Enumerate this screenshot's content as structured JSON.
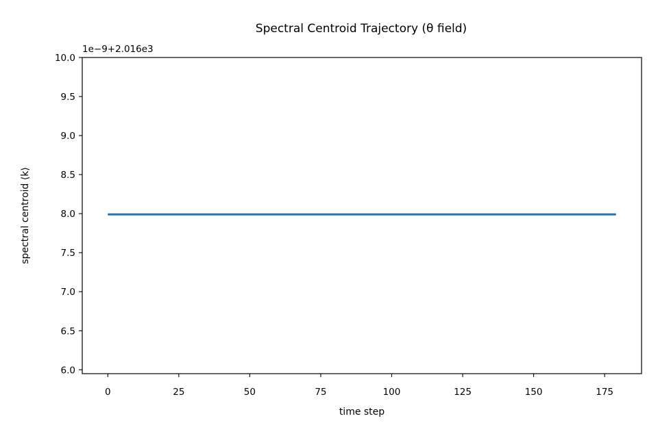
{
  "chart_data": {
    "type": "line",
    "title": "Spectral Centroid Trajectory (θ field)",
    "xlabel": "time step",
    "ylabel": "spectral centroid ⟨k⟩",
    "y_offset_label": "1e−9+2.016e3",
    "xlim": [
      -9,
      188
    ],
    "ylim": [
      5.95,
      10.0
    ],
    "x_ticks": [
      0,
      25,
      50,
      75,
      100,
      125,
      150,
      175
    ],
    "x_tick_labels": [
      "0",
      "25",
      "50",
      "75",
      "100",
      "125",
      "150",
      "175"
    ],
    "y_ticks": [
      6.0,
      6.5,
      7.0,
      7.5,
      8.0,
      8.5,
      9.0,
      9.5,
      10.0
    ],
    "y_tick_labels": [
      "6.0",
      "6.5",
      "7.0",
      "7.5",
      "8.0",
      "8.5",
      "9.0",
      "9.5",
      "10.0"
    ],
    "grid": false,
    "series": [
      {
        "color": "#1f77b4",
        "x_start": 0,
        "x_end": 179,
        "step": 1,
        "y_constant": 7.99
      }
    ]
  }
}
